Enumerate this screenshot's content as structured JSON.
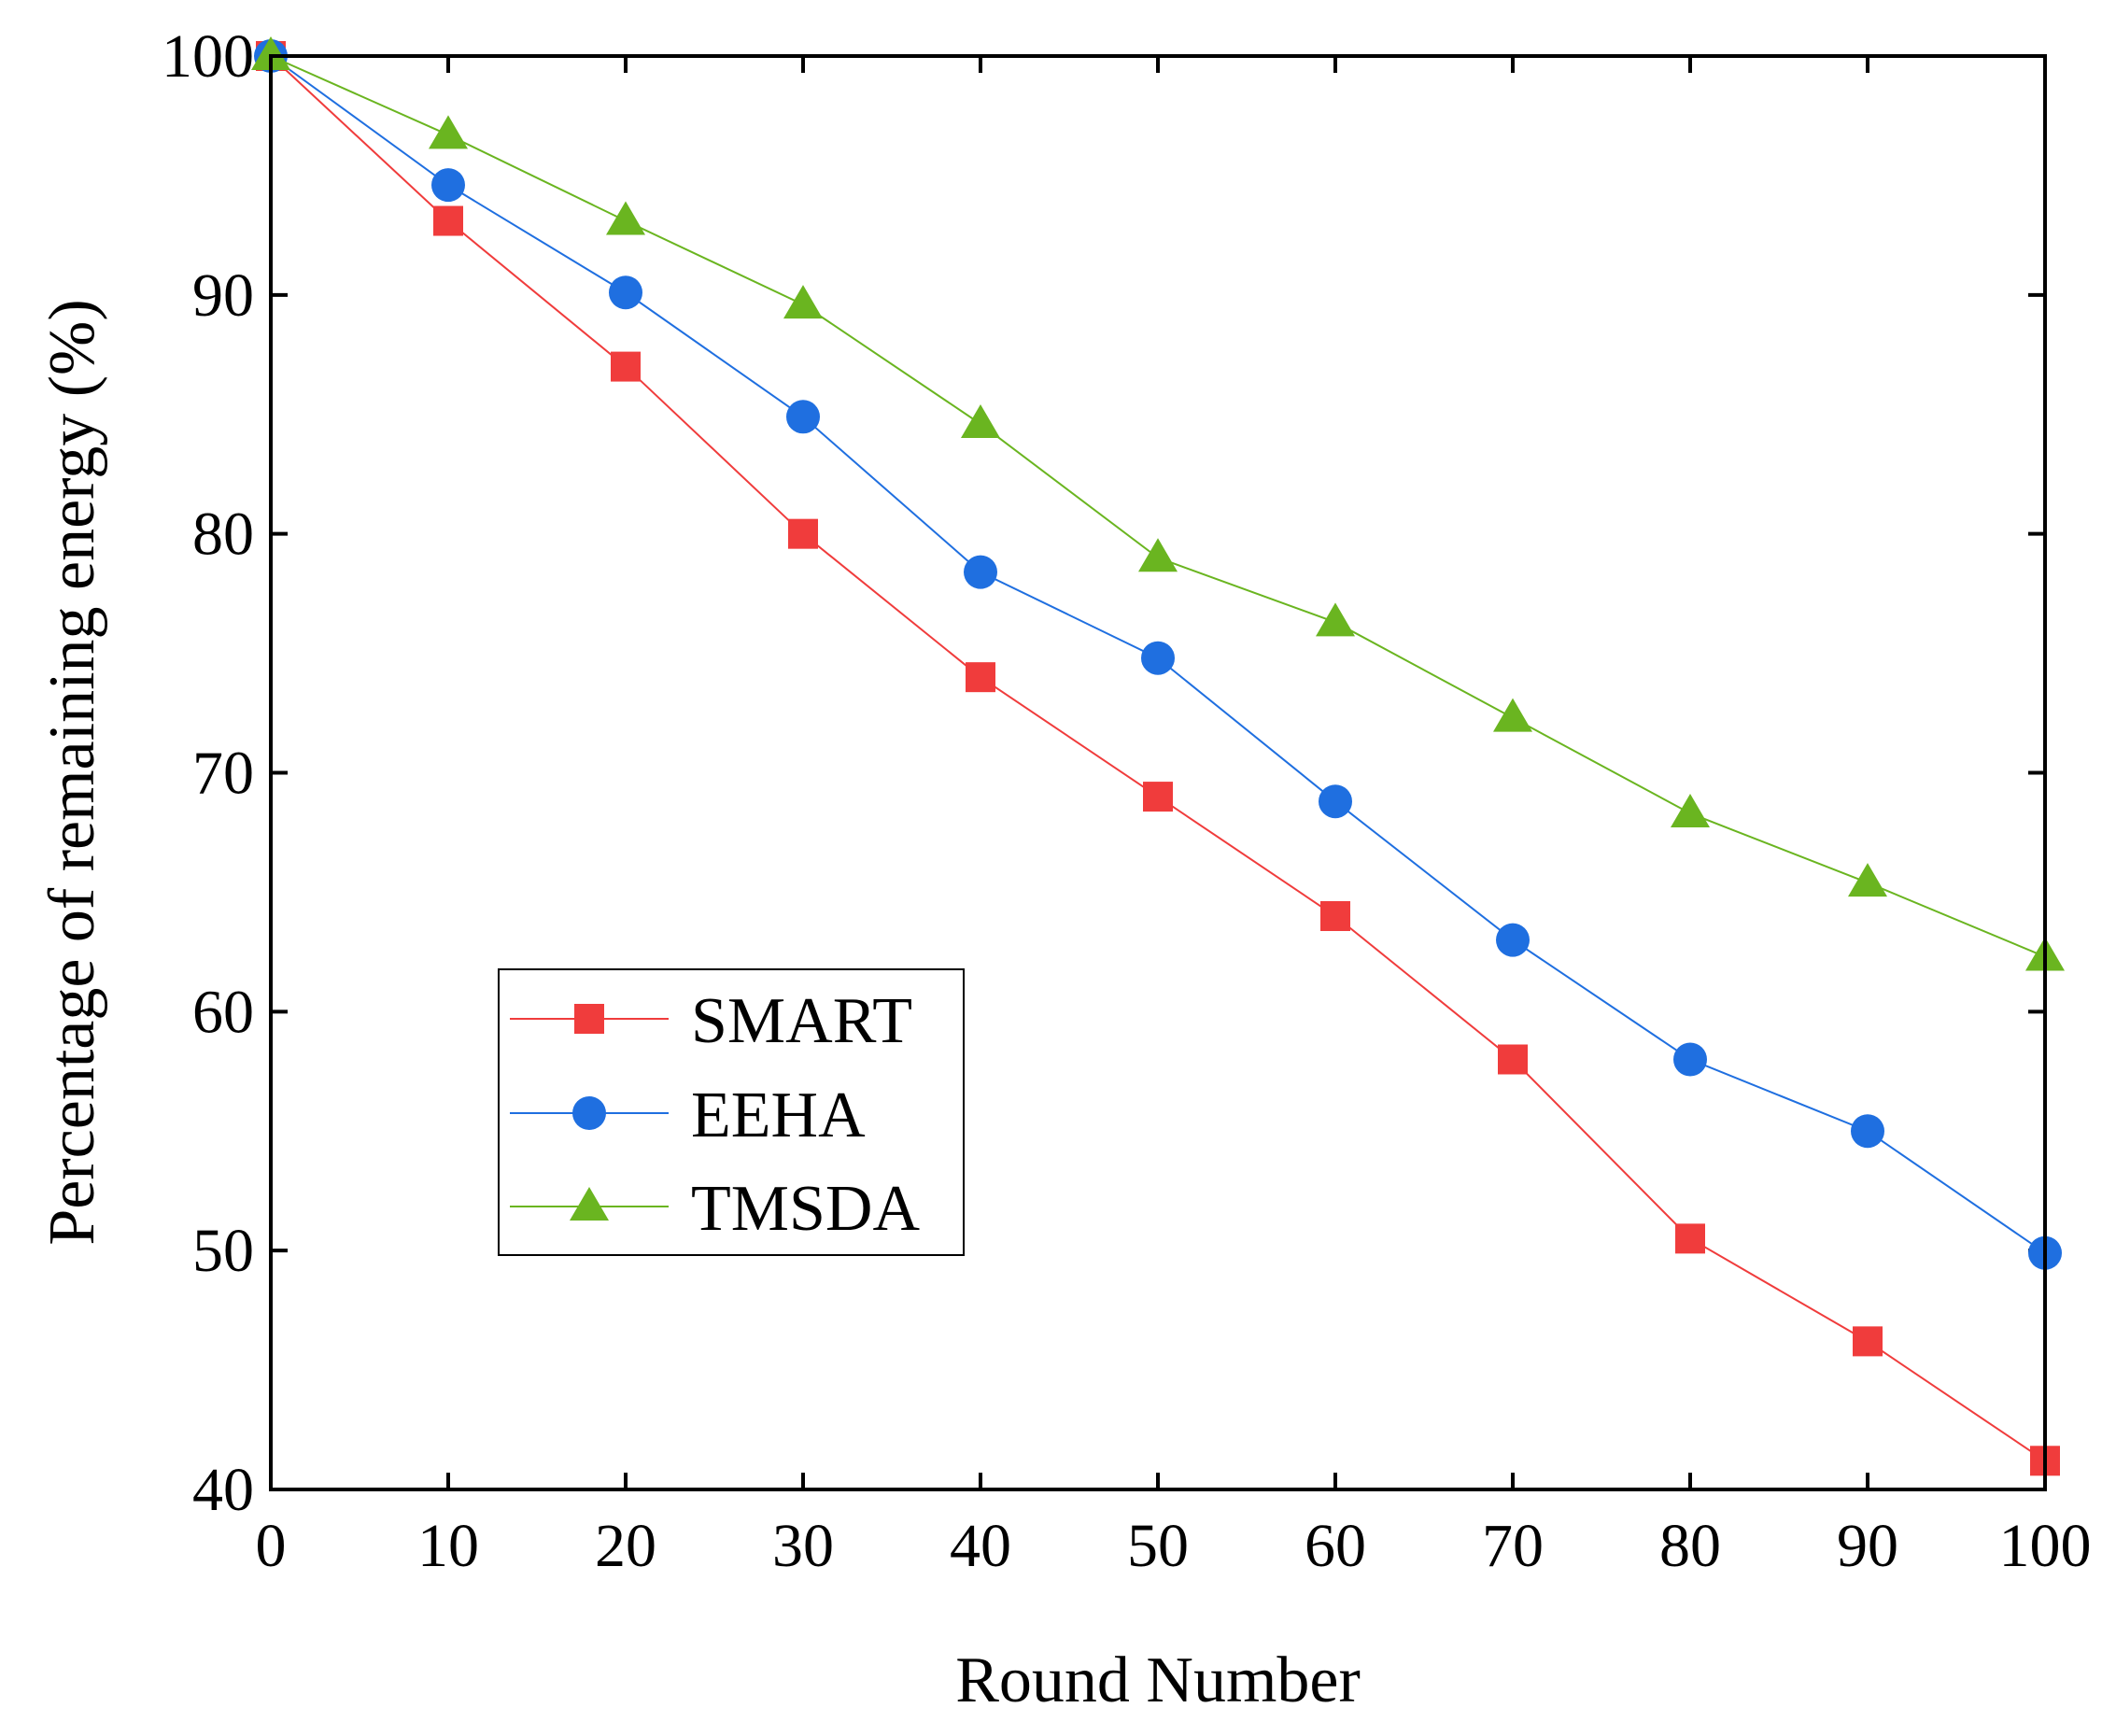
{
  "chart_data": {
    "type": "line",
    "title": "",
    "xlabel": "Round Number",
    "ylabel": "Percentage of remaining energy (%)",
    "xlim": [
      0,
      100
    ],
    "ylim": [
      40,
      100
    ],
    "xticks": [
      0,
      10,
      20,
      30,
      40,
      50,
      60,
      70,
      80,
      90,
      100
    ],
    "yticks": [
      40,
      50,
      60,
      70,
      80,
      90,
      100
    ],
    "x": [
      0,
      10,
      20,
      30,
      40,
      50,
      60,
      70,
      80,
      90,
      100
    ],
    "grid": false,
    "legend_position": "bottom-left",
    "series": [
      {
        "name": "SMART",
        "color": "#f03c3c",
        "marker": "square",
        "values": [
          100,
          93.1,
          87.0,
          80.0,
          74.0,
          69.0,
          64.0,
          58.0,
          50.5,
          46.2,
          41.2
        ]
      },
      {
        "name": "EEHA",
        "color": "#1f6fe0",
        "marker": "circle",
        "values": [
          100,
          94.6,
          90.1,
          84.9,
          78.4,
          74.8,
          68.8,
          63.0,
          58.0,
          55.0,
          49.9
        ]
      },
      {
        "name": "TMSDA",
        "color": "#6ab520",
        "marker": "triangle",
        "values": [
          100,
          96.7,
          93.1,
          89.6,
          84.6,
          79.0,
          76.3,
          72.3,
          68.3,
          65.4,
          62.3
        ]
      }
    ]
  }
}
